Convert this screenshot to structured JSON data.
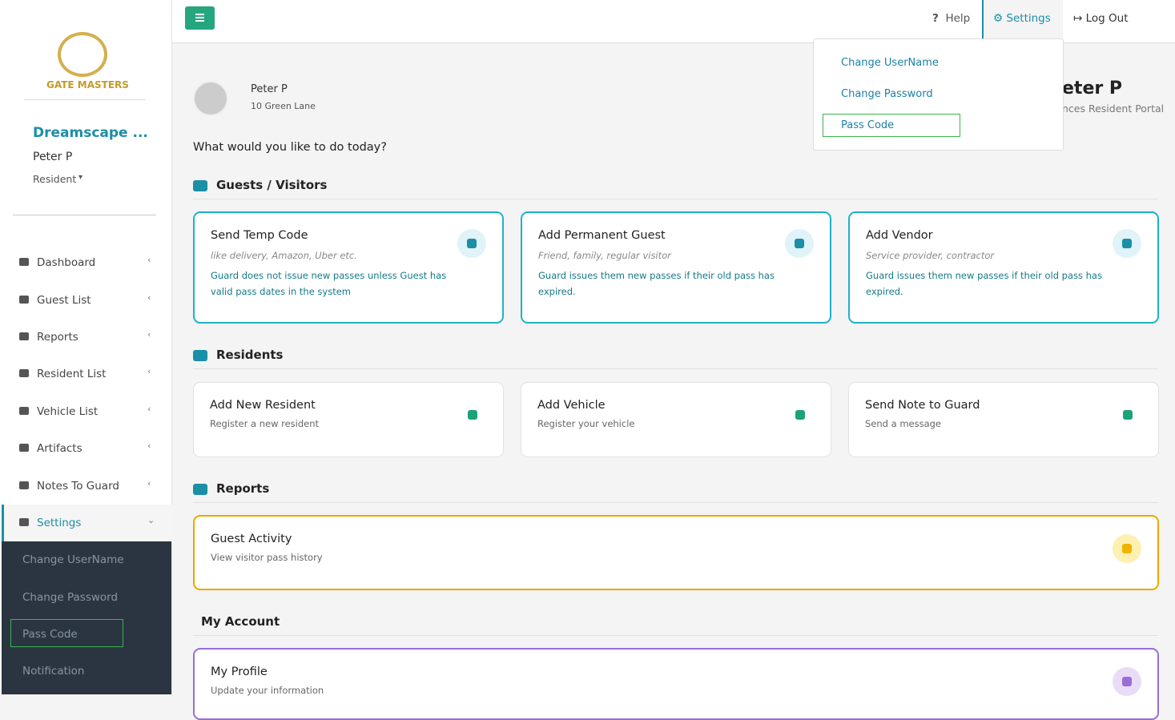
{
  "sidebar": {
    "logo": "GATE MASTERS",
    "community": "Dreamscape ...",
    "user": "Peter P",
    "role": "Resident",
    "menu": [
      "Dashboard",
      "Guest List",
      "Reports",
      "Resident List",
      "Vehicle List",
      "Artifacts",
      "Notes To Guard",
      "Settings"
    ],
    "submenu": [
      "Change UserName",
      "Change Password",
      "Pass Code",
      "Notification"
    ]
  },
  "topbar": {
    "help": "Help",
    "settings": "Settings",
    "logout": "Log Out"
  },
  "dropdown": [
    "Change UserName",
    "Change Password",
    "Pass Code"
  ],
  "profile": {
    "name": "Peter P",
    "address": "10 Green Lane",
    "greeting": "eter P",
    "portal": "nces Resident Portal"
  },
  "prompt": "What would you like to do today?",
  "sections": [
    {
      "title": "Guests / Visitors",
      "cards": [
        {
          "title": "Send Temp Code",
          "subtitle": "like delivery, Amazon, Uber etc.",
          "description": "Guard does not issue new passes unless Guest has valid pass dates in the system"
        },
        {
          "title": "Add Permanent Guest",
          "subtitle": "Friend, family, regular visitor",
          "description": "Guard issues them new passes if their old pass has expired."
        },
        {
          "title": "Add Vendor",
          "subtitle": "Service provider, contractor",
          "description": "Guard issues them new passes if their old pass has expired."
        }
      ]
    },
    {
      "title": "Residents",
      "cards": [
        {
          "title": "Add New Resident",
          "subtitle": "Register a new resident"
        },
        {
          "title": "Add Vehicle",
          "subtitle": "Register your vehicle"
        },
        {
          "title": "Send Note to Guard",
          "subtitle": "Send a message"
        }
      ]
    },
    {
      "title": "Reports",
      "cards": [
        {
          "title": "Guest Activity",
          "subtitle": "View visitor pass history"
        }
      ]
    },
    {
      "title": "My Account",
      "cards": [
        {
          "title": "My Profile",
          "subtitle": "Update your information"
        }
      ]
    }
  ]
}
